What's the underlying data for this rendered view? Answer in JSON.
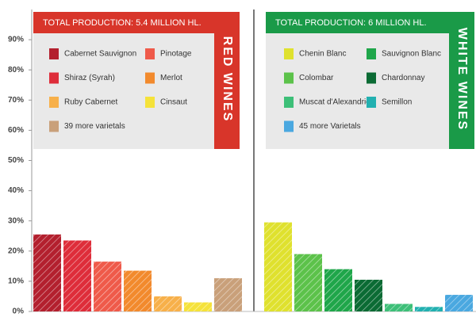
{
  "chart_data": [
    {
      "type": "bar",
      "title": "TOTAL PRODUCTION: 5.4 MILLION HL.",
      "label": "RED WINES",
      "color": "#d8352a",
      "categories": [
        "Cabernet Sauvignon",
        "Shiraz (Syrah)",
        "Pinotage",
        "Merlot",
        "Ruby Cabernet",
        "Cinsaut",
        "39 more varietals"
      ],
      "values": [
        25.5,
        23.5,
        16.5,
        13.5,
        5,
        3,
        11
      ],
      "colors": [
        "#b3202e",
        "#de2d3a",
        "#ef5a4a",
        "#f28a2d",
        "#f7b04a",
        "#f5e23a",
        "#c9a07a"
      ],
      "ylim": [
        0,
        100
      ],
      "yticks": [
        {
          "value": 0,
          "label": "0%"
        },
        {
          "value": 10,
          "label": "10%"
        },
        {
          "value": 20,
          "label": "20%"
        },
        {
          "value": 30,
          "label": "30%"
        },
        {
          "value": 40,
          "label": "40%"
        },
        {
          "value": 50,
          "label": "50%"
        },
        {
          "value": 60,
          "label": "60%"
        },
        {
          "value": 70,
          "label": "70%"
        },
        {
          "value": 80,
          "label": "80%"
        },
        {
          "value": 90,
          "label": "90%"
        }
      ]
    },
    {
      "type": "bar",
      "title": "TOTAL PRODUCTION: 6 MILLION HL.",
      "label": "WHITE WINES",
      "color": "#1a9a48",
      "categories": [
        "Chenin Blanc",
        "Colombar",
        "Sauvignon Blanc",
        "Chardonnay",
        "Muscat d'Alexandrie",
        "Semillon",
        "45 more Varietals"
      ],
      "values": [
        29.5,
        19,
        14,
        10.5,
        2.5,
        1.5,
        5.5
      ],
      "colors": [
        "#dfe12e",
        "#5cc24a",
        "#1fa64a",
        "#0b6b34",
        "#3dbf78",
        "#22b0b0",
        "#4aa8e0"
      ],
      "ylim": [
        0,
        100
      ]
    }
  ]
}
